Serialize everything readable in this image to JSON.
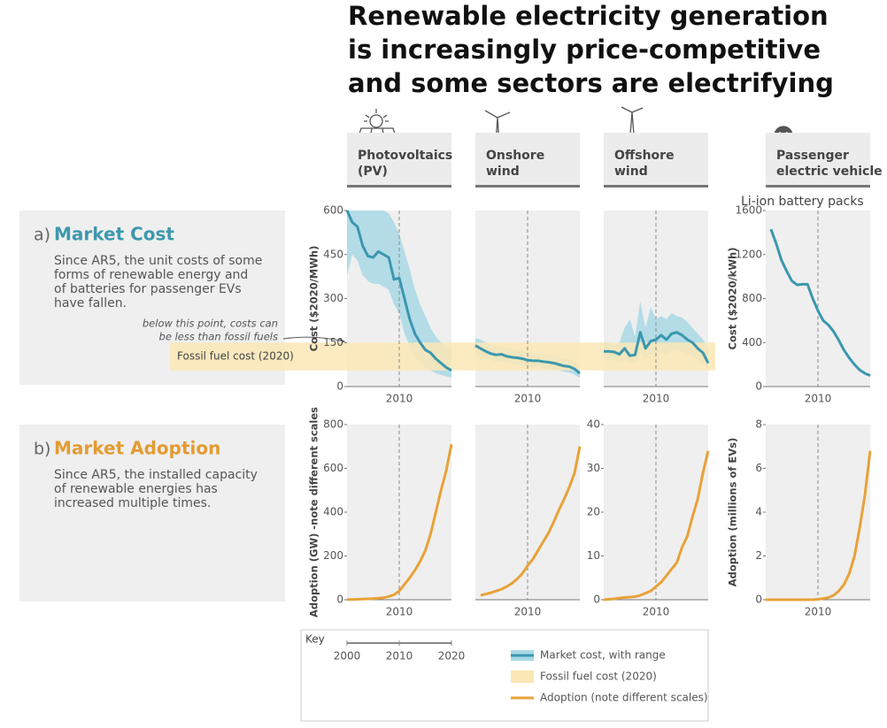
{
  "title": [
    "Renewable electricity generation",
    "is increasingly price-competitive",
    "and some sectors are electrifying"
  ],
  "technologies": [
    [
      "Photovoltaics",
      "(PV)"
    ],
    [
      "Onshore",
      "wind"
    ],
    [
      "Offshore",
      "wind"
    ],
    [
      "Passenger",
      "electric vehicle"
    ]
  ],
  "sections": [
    {
      "letter": "a)",
      "title": "Market Cost",
      "color": "#3d98ad",
      "lines": [
        "Since AR5, the unit costs of some",
        "forms of renewable energy and",
        "of batteries for passenger EVs",
        "have fallen."
      ]
    },
    {
      "letter": "b)",
      "title": "Market Adoption",
      "color": "#e39b32",
      "lines": [
        "Since AR5, the installed capacity",
        "of renewable energies has",
        "increased multiple times."
      ]
    }
  ],
  "annotation": [
    "below this point, costs can",
    "be less than fossil fuels"
  ],
  "fossil_fuel_cost": {
    "label": "Fossil fuel cost (2020)",
    "range": [
      55,
      150
    ],
    "color": "#fbe7b5"
  },
  "key": {
    "title": "Key",
    "xlim": [
      2000,
      2020
    ],
    "xticks": [
      2000,
      2010,
      2020
    ],
    "entries": [
      {
        "name": "Market cost, with range",
        "color": "#3b97ae"
      },
      {
        "name": "Fossil fuel cost (2020)",
        "color": "#fbe7b5"
      },
      {
        "name": "Adoption (note different scales)",
        "color": "#e8a238"
      }
    ]
  },
  "chart_data": [
    {
      "type": "line",
      "y_label": "Cost ($2020/MWh)",
      "xlim": [
        2000,
        2020
      ],
      "xticks": [
        2010
      ],
      "ylim": [
        0,
        600
      ],
      "yticks": [
        0,
        150,
        300,
        450,
        600
      ],
      "x": [
        2000,
        2001,
        2002,
        2003,
        2004,
        2005,
        2006,
        2007,
        2008,
        2009,
        2010,
        2011,
        2012,
        2013,
        2014,
        2015,
        2016,
        2017,
        2018,
        2019,
        2020
      ],
      "series": [
        {
          "color": "#3b97ae",
          "range_color": "#a8d8e5",
          "values": [
            600,
            560,
            545,
            480,
            445,
            440,
            460,
            450,
            440,
            365,
            370,
            300,
            230,
            180,
            150,
            125,
            115,
            95,
            80,
            65,
            55
          ],
          "range_low": [
            380,
            450,
            430,
            380,
            360,
            350,
            350,
            340,
            330,
            280,
            250,
            180,
            140,
            100,
            80,
            65,
            55,
            45,
            40,
            35,
            30
          ],
          "range_high": [
            600,
            600,
            600,
            600,
            600,
            600,
            600,
            600,
            590,
            560,
            520,
            460,
            400,
            330,
            280,
            240,
            200,
            170,
            150,
            140,
            135
          ]
        }
      ]
    },
    {
      "type": "line",
      "xlim": [
        2000,
        2020
      ],
      "xticks": [
        2010
      ],
      "ylim": [
        0,
        600
      ],
      "x": [
        2000,
        2001,
        2002,
        2003,
        2004,
        2005,
        2006,
        2007,
        2008,
        2009,
        2010,
        2011,
        2012,
        2013,
        2014,
        2015,
        2016,
        2017,
        2018,
        2019,
        2020
      ],
      "series": [
        {
          "color": "#3b97ae",
          "range_color": "#a8d8e5",
          "values": [
            140,
            130,
            120,
            112,
            108,
            110,
            103,
            100,
            98,
            95,
            90,
            88,
            88,
            85,
            83,
            80,
            75,
            70,
            68,
            60,
            45
          ],
          "range_low": [
            115,
            105,
            95,
            90,
            85,
            85,
            80,
            78,
            75,
            72,
            68,
            65,
            65,
            62,
            60,
            58,
            55,
            50,
            48,
            40,
            30
          ],
          "range_high": [
            165,
            160,
            150,
            140,
            135,
            135,
            130,
            128,
            125,
            120,
            118,
            115,
            112,
            110,
            108,
            105,
            100,
            95,
            90,
            80,
            60
          ]
        }
      ]
    },
    {
      "type": "line",
      "xlim": [
        2000,
        2020
      ],
      "xticks": [
        2010
      ],
      "ylim": [
        0,
        600
      ],
      "x": [
        2000,
        2001,
        2002,
        2003,
        2004,
        2005,
        2006,
        2007,
        2008,
        2009,
        2010,
        2011,
        2012,
        2013,
        2014,
        2015,
        2016,
        2017,
        2018,
        2019,
        2020
      ],
      "series": [
        {
          "color": "#3b97ae",
          "range_color": "#a8d8e5",
          "values": [
            120,
            120,
            118,
            110,
            130,
            105,
            108,
            185,
            130,
            155,
            160,
            175,
            160,
            180,
            185,
            175,
            160,
            150,
            130,
            115,
            80
          ],
          "range_low": [
            95,
            90,
            90,
            80,
            90,
            80,
            80,
            110,
            95,
            110,
            115,
            120,
            110,
            125,
            130,
            120,
            110,
            100,
            90,
            75,
            60
          ],
          "range_high": [
            150,
            150,
            140,
            150,
            200,
            230,
            170,
            290,
            200,
            270,
            230,
            240,
            230,
            250,
            240,
            235,
            220,
            200,
            180,
            160,
            130
          ]
        }
      ]
    },
    {
      "type": "line",
      "subtitle": "Li-ion battery packs",
      "y_label": "Cost ($2020/kWh)",
      "xlim": [
        2000,
        2020
      ],
      "xticks": [
        2010
      ],
      "ylim": [
        0,
        1600
      ],
      "yticks": [
        0,
        400,
        800,
        1200,
        1600
      ],
      "x": [
        2001,
        2002,
        2003,
        2004,
        2005,
        2006,
        2007,
        2008,
        2009,
        2010,
        2011,
        2012,
        2013,
        2014,
        2015,
        2016,
        2017,
        2018,
        2019,
        2020
      ],
      "series": [
        {
          "color": "#3b97ae",
          "values": [
            1430,
            1300,
            1150,
            1050,
            960,
            925,
            930,
            930,
            800,
            690,
            600,
            560,
            500,
            420,
            330,
            260,
            200,
            150,
            120,
            100
          ]
        }
      ]
    },
    {
      "type": "line",
      "y_label": "Adoption (GW) -note different scales",
      "xlim": [
        2000,
        2020
      ],
      "xticks": [
        2010
      ],
      "ylim": [
        0,
        800
      ],
      "yticks": [
        0,
        200,
        400,
        600,
        800
      ],
      "x": [
        2000,
        2001,
        2002,
        2003,
        2004,
        2005,
        2006,
        2007,
        2008,
        2009,
        2010,
        2011,
        2012,
        2013,
        2014,
        2015,
        2016,
        2017,
        2018,
        2019,
        2020
      ],
      "series": [
        {
          "color": "#e8a238",
          "values": [
            1,
            1,
            2,
            3,
            4,
            5,
            7,
            9,
            15,
            23,
            40,
            70,
            100,
            135,
            175,
            225,
            300,
            400,
            500,
            590,
            710
          ]
        }
      ]
    },
    {
      "type": "line",
      "xlim": [
        2000,
        2020
      ],
      "xticks": [
        2010
      ],
      "ylim": [
        0,
        800
      ],
      "x": [
        2001,
        2002,
        2003,
        2004,
        2005,
        2006,
        2007,
        2008,
        2009,
        2010,
        2011,
        2012,
        2013,
        2014,
        2015,
        2016,
        2017,
        2018,
        2019,
        2020
      ],
      "series": [
        {
          "color": "#e8a238",
          "values": [
            20,
            26,
            32,
            40,
            48,
            60,
            75,
            95,
            120,
            155,
            185,
            225,
            265,
            305,
            355,
            410,
            460,
            515,
            580,
            700
          ]
        }
      ]
    },
    {
      "type": "line",
      "xlim": [
        2000,
        2020
      ],
      "xticks": [
        2010
      ],
      "ylim": [
        0,
        40
      ],
      "yticks": [
        0,
        10,
        20,
        30,
        40
      ],
      "x": [
        2000,
        2001,
        2002,
        2003,
        2004,
        2005,
        2006,
        2007,
        2008,
        2009,
        2010,
        2011,
        2012,
        2013,
        2014,
        2015,
        2016,
        2017,
        2018,
        2019,
        2020
      ],
      "series": [
        {
          "color": "#e8a238",
          "values": [
            0,
            0.1,
            0.2,
            0.4,
            0.5,
            0.6,
            0.7,
            1,
            1.5,
            2,
            3,
            4,
            5.5,
            7,
            8.5,
            12,
            14.5,
            19,
            23,
            29,
            34
          ]
        }
      ]
    },
    {
      "type": "line",
      "y_label": "Adoption (millions of EVs)",
      "xlim": [
        2000,
        2020
      ],
      "xticks": [
        2010
      ],
      "ylim": [
        0,
        8
      ],
      "yticks": [
        0,
        2,
        4,
        6,
        8
      ],
      "x": [
        2000,
        2001,
        2002,
        2003,
        2004,
        2005,
        2006,
        2007,
        2008,
        2009,
        2010,
        2011,
        2012,
        2013,
        2014,
        2015,
        2016,
        2017,
        2018,
        2019,
        2020
      ],
      "series": [
        {
          "color": "#e8a238",
          "values": [
            0,
            0,
            0,
            0,
            0,
            0,
            0,
            0,
            0,
            0,
            0.02,
            0.05,
            0.1,
            0.2,
            0.4,
            0.7,
            1.2,
            2,
            3.3,
            4.8,
            6.8
          ]
        }
      ]
    }
  ]
}
